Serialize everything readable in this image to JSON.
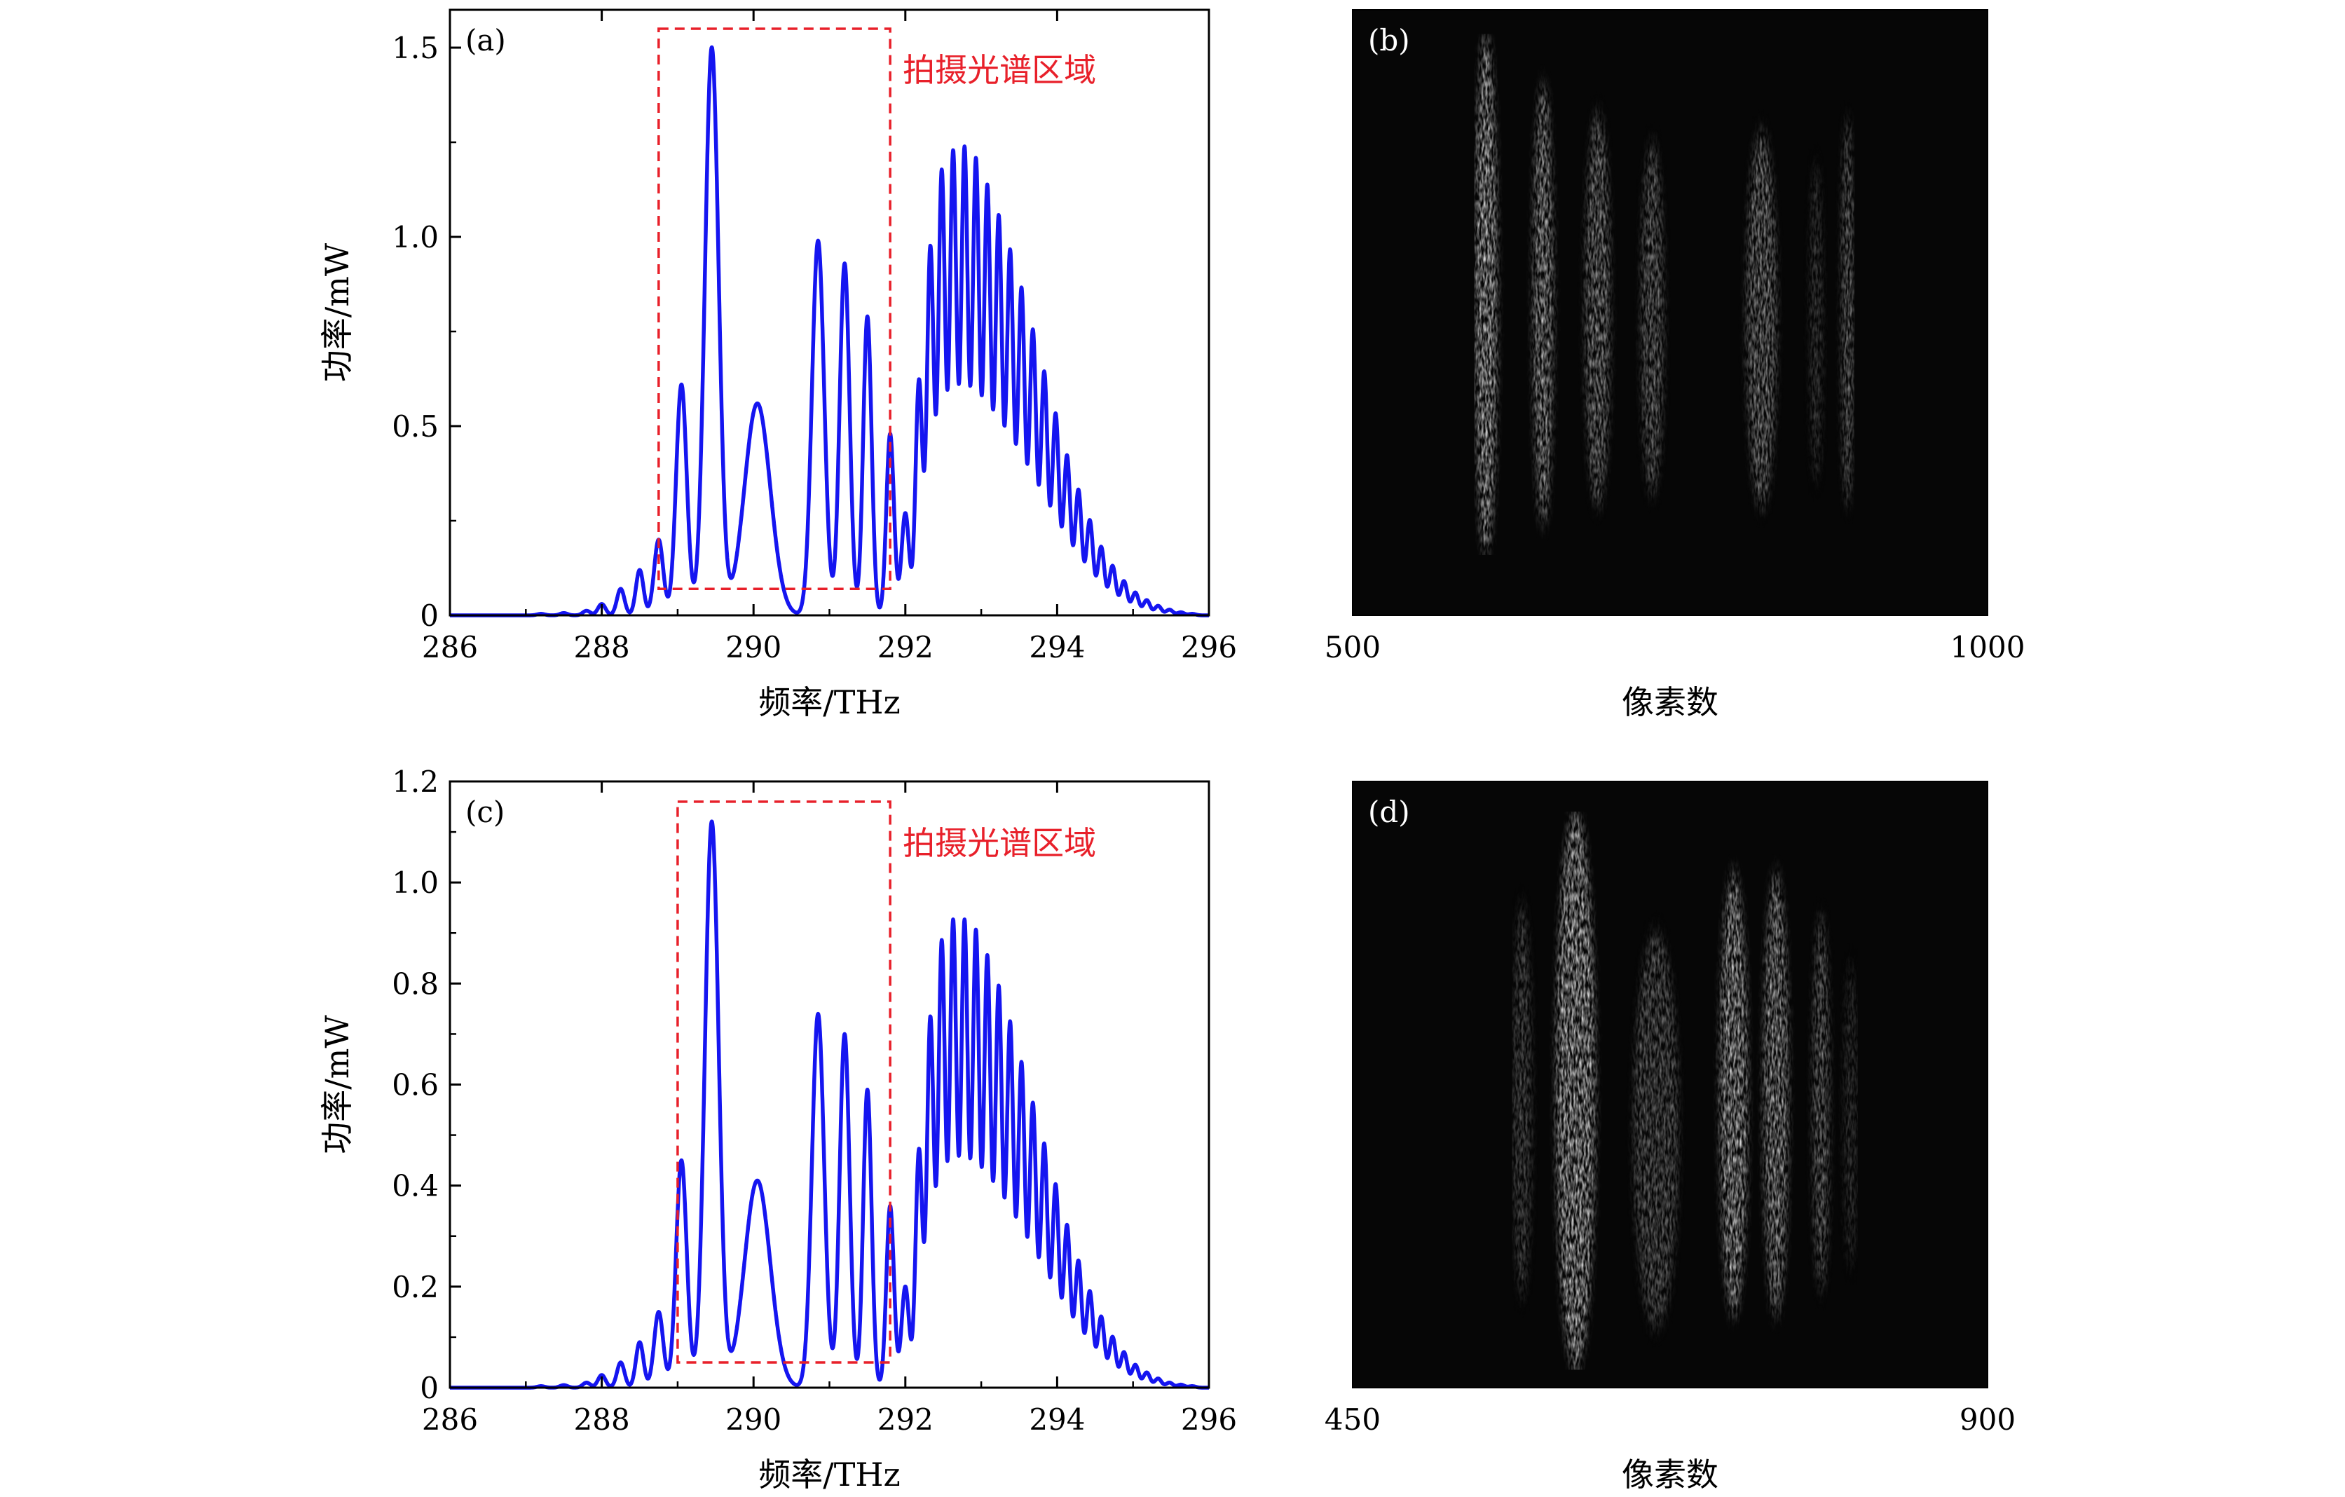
{
  "chart_data": [
    {
      "panel": "(a)",
      "type": "line",
      "xlabel": "频率/THz",
      "ylabel": "功率/mW",
      "xlim": [
        286,
        296
      ],
      "ylim": [
        0,
        1.6
      ],
      "xticks": [
        "286",
        "288",
        "290",
        "292",
        "294",
        "296"
      ],
      "yticks": [
        "0",
        "0.5",
        "1.0",
        "1.5"
      ],
      "annotation": "拍摄光谱区域",
      "region": {
        "x": [
          288.75,
          291.8
        ],
        "y": [
          0.07,
          1.55
        ]
      },
      "color": "#1515f0",
      "peaks": [
        {
          "x": 287.2,
          "y": 0.004,
          "w": 0.05
        },
        {
          "x": 287.5,
          "y": 0.006,
          "w": 0.05
        },
        {
          "x": 287.8,
          "y": 0.012,
          "w": 0.05
        },
        {
          "x": 288.0,
          "y": 0.03,
          "w": 0.05
        },
        {
          "x": 288.25,
          "y": 0.07,
          "w": 0.05
        },
        {
          "x": 288.5,
          "y": 0.12,
          "w": 0.05
        },
        {
          "x": 288.75,
          "y": 0.2,
          "w": 0.06
        },
        {
          "x": 289.05,
          "y": 0.61,
          "w": 0.07
        },
        {
          "x": 289.45,
          "y": 1.5,
          "w": 0.09
        },
        {
          "x": 290.05,
          "y": 0.56,
          "w": 0.17
        },
        {
          "x": 290.85,
          "y": 0.99,
          "w": 0.08
        },
        {
          "x": 291.2,
          "y": 0.93,
          "w": 0.065
        },
        {
          "x": 291.5,
          "y": 0.79,
          "w": 0.055
        },
        {
          "x": 291.8,
          "y": 0.48,
          "w": 0.05
        },
        {
          "x": 292.0,
          "y": 0.27,
          "w": 0.05
        },
        {
          "x": 292.18,
          "y": 0.62,
          "w": 0.045
        },
        {
          "x": 292.33,
          "y": 0.97,
          "w": 0.045
        },
        {
          "x": 292.48,
          "y": 1.17,
          "w": 0.045
        },
        {
          "x": 292.63,
          "y": 1.22,
          "w": 0.045
        },
        {
          "x": 292.78,
          "y": 1.23,
          "w": 0.045
        },
        {
          "x": 292.93,
          "y": 1.2,
          "w": 0.045
        },
        {
          "x": 293.08,
          "y": 1.13,
          "w": 0.045
        },
        {
          "x": 293.23,
          "y": 1.05,
          "w": 0.045
        },
        {
          "x": 293.38,
          "y": 0.96,
          "w": 0.045
        },
        {
          "x": 293.53,
          "y": 0.86,
          "w": 0.045
        },
        {
          "x": 293.68,
          "y": 0.75,
          "w": 0.045
        },
        {
          "x": 293.83,
          "y": 0.64,
          "w": 0.045
        },
        {
          "x": 293.98,
          "y": 0.53,
          "w": 0.045
        },
        {
          "x": 294.13,
          "y": 0.42,
          "w": 0.045
        },
        {
          "x": 294.28,
          "y": 0.33,
          "w": 0.045
        },
        {
          "x": 294.43,
          "y": 0.25,
          "w": 0.045
        },
        {
          "x": 294.58,
          "y": 0.18,
          "w": 0.045
        },
        {
          "x": 294.73,
          "y": 0.13,
          "w": 0.045
        },
        {
          "x": 294.88,
          "y": 0.09,
          "w": 0.045
        },
        {
          "x": 295.03,
          "y": 0.06,
          "w": 0.045
        },
        {
          "x": 295.18,
          "y": 0.04,
          "w": 0.045
        },
        {
          "x": 295.33,
          "y": 0.025,
          "w": 0.045
        },
        {
          "x": 295.48,
          "y": 0.015,
          "w": 0.045
        },
        {
          "x": 295.63,
          "y": 0.008,
          "w": 0.045
        },
        {
          "x": 295.78,
          "y": 0.004,
          "w": 0.045
        }
      ]
    },
    {
      "panel": "(b)",
      "type": "heatmap",
      "xlabel": "像素数",
      "xlim": [
        500,
        1000
      ],
      "xticks": [
        "500",
        "1000"
      ],
      "stripes": [
        {
          "x": 605,
          "y": [
            0.04,
            0.9
          ],
          "w": 9,
          "level": 0.97
        },
        {
          "x": 650,
          "y": [
            0.12,
            0.85
          ],
          "w": 8,
          "level": 0.82
        },
        {
          "x": 693,
          "y": [
            0.17,
            0.82
          ],
          "w": 10,
          "level": 0.62
        },
        {
          "x": 736,
          "y": [
            0.22,
            0.8
          ],
          "w": 9,
          "level": 0.5
        },
        {
          "x": 822,
          "y": [
            0.2,
            0.82
          ],
          "w": 12,
          "level": 0.6
        },
        {
          "x": 865,
          "y": [
            0.25,
            0.78
          ],
          "w": 5,
          "level": 0.22
        },
        {
          "x": 890,
          "y": [
            0.18,
            0.82
          ],
          "w": 5,
          "level": 0.55
        }
      ]
    },
    {
      "panel": "(c)",
      "type": "line",
      "xlabel": "频率/THz",
      "ylabel": "功率/mW",
      "xlim": [
        286,
        296
      ],
      "ylim": [
        0,
        1.2
      ],
      "xticks": [
        "286",
        "288",
        "290",
        "292",
        "294",
        "296"
      ],
      "yticks": [
        "0",
        "0.2",
        "0.4",
        "0.6",
        "0.8",
        "1.0",
        "1.2"
      ],
      "annotation": "拍摄光谱区域",
      "region": {
        "x": [
          289.0,
          291.8
        ],
        "y": [
          0.05,
          1.16
        ]
      },
      "color": "#1515f0",
      "peaks": [
        {
          "x": 287.2,
          "y": 0.003,
          "w": 0.05
        },
        {
          "x": 287.5,
          "y": 0.005,
          "w": 0.05
        },
        {
          "x": 287.8,
          "y": 0.01,
          "w": 0.05
        },
        {
          "x": 288.0,
          "y": 0.025,
          "w": 0.05
        },
        {
          "x": 288.25,
          "y": 0.05,
          "w": 0.05
        },
        {
          "x": 288.5,
          "y": 0.09,
          "w": 0.05
        },
        {
          "x": 288.75,
          "y": 0.15,
          "w": 0.06
        },
        {
          "x": 289.05,
          "y": 0.45,
          "w": 0.07
        },
        {
          "x": 289.45,
          "y": 1.12,
          "w": 0.09
        },
        {
          "x": 290.05,
          "y": 0.41,
          "w": 0.17
        },
        {
          "x": 290.85,
          "y": 0.74,
          "w": 0.08
        },
        {
          "x": 291.2,
          "y": 0.7,
          "w": 0.065
        },
        {
          "x": 291.5,
          "y": 0.59,
          "w": 0.055
        },
        {
          "x": 291.8,
          "y": 0.36,
          "w": 0.05
        },
        {
          "x": 292.0,
          "y": 0.2,
          "w": 0.05
        },
        {
          "x": 292.18,
          "y": 0.47,
          "w": 0.045
        },
        {
          "x": 292.33,
          "y": 0.73,
          "w": 0.045
        },
        {
          "x": 292.48,
          "y": 0.88,
          "w": 0.045
        },
        {
          "x": 292.63,
          "y": 0.92,
          "w": 0.045
        },
        {
          "x": 292.78,
          "y": 0.92,
          "w": 0.045
        },
        {
          "x": 292.93,
          "y": 0.9,
          "w": 0.045
        },
        {
          "x": 293.08,
          "y": 0.85,
          "w": 0.045
        },
        {
          "x": 293.23,
          "y": 0.79,
          "w": 0.045
        },
        {
          "x": 293.38,
          "y": 0.72,
          "w": 0.045
        },
        {
          "x": 293.53,
          "y": 0.64,
          "w": 0.045
        },
        {
          "x": 293.68,
          "y": 0.56,
          "w": 0.045
        },
        {
          "x": 293.83,
          "y": 0.48,
          "w": 0.045
        },
        {
          "x": 293.98,
          "y": 0.4,
          "w": 0.045
        },
        {
          "x": 294.13,
          "y": 0.32,
          "w": 0.045
        },
        {
          "x": 294.28,
          "y": 0.25,
          "w": 0.045
        },
        {
          "x": 294.43,
          "y": 0.19,
          "w": 0.045
        },
        {
          "x": 294.58,
          "y": 0.14,
          "w": 0.045
        },
        {
          "x": 294.73,
          "y": 0.1,
          "w": 0.045
        },
        {
          "x": 294.88,
          "y": 0.07,
          "w": 0.045
        },
        {
          "x": 295.03,
          "y": 0.045,
          "w": 0.045
        },
        {
          "x": 295.18,
          "y": 0.03,
          "w": 0.045
        },
        {
          "x": 295.33,
          "y": 0.018,
          "w": 0.045
        },
        {
          "x": 295.48,
          "y": 0.01,
          "w": 0.045
        },
        {
          "x": 295.63,
          "y": 0.006,
          "w": 0.045
        },
        {
          "x": 295.78,
          "y": 0.003,
          "w": 0.045
        }
      ]
    },
    {
      "panel": "(d)",
      "type": "heatmap",
      "xlabel": "像素数",
      "xlim": [
        450,
        900
      ],
      "xticks": [
        "450",
        "900"
      ],
      "stripes": [
        {
          "x": 570,
          "y": [
            0.2,
            0.85
          ],
          "w": 7,
          "level": 0.3
        },
        {
          "x": 608,
          "y": [
            0.05,
            0.97
          ],
          "w": 14,
          "level": 0.98
        },
        {
          "x": 665,
          "y": [
            0.25,
            0.9
          ],
          "w": 16,
          "level": 0.4
        },
        {
          "x": 720,
          "y": [
            0.15,
            0.88
          ],
          "w": 10,
          "level": 0.92
        },
        {
          "x": 750,
          "y": [
            0.15,
            0.88
          ],
          "w": 9,
          "level": 0.8
        },
        {
          "x": 782,
          "y": [
            0.22,
            0.84
          ],
          "w": 6,
          "level": 0.5
        },
        {
          "x": 803,
          "y": [
            0.3,
            0.8
          ],
          "w": 5,
          "level": 0.15
        }
      ]
    }
  ]
}
